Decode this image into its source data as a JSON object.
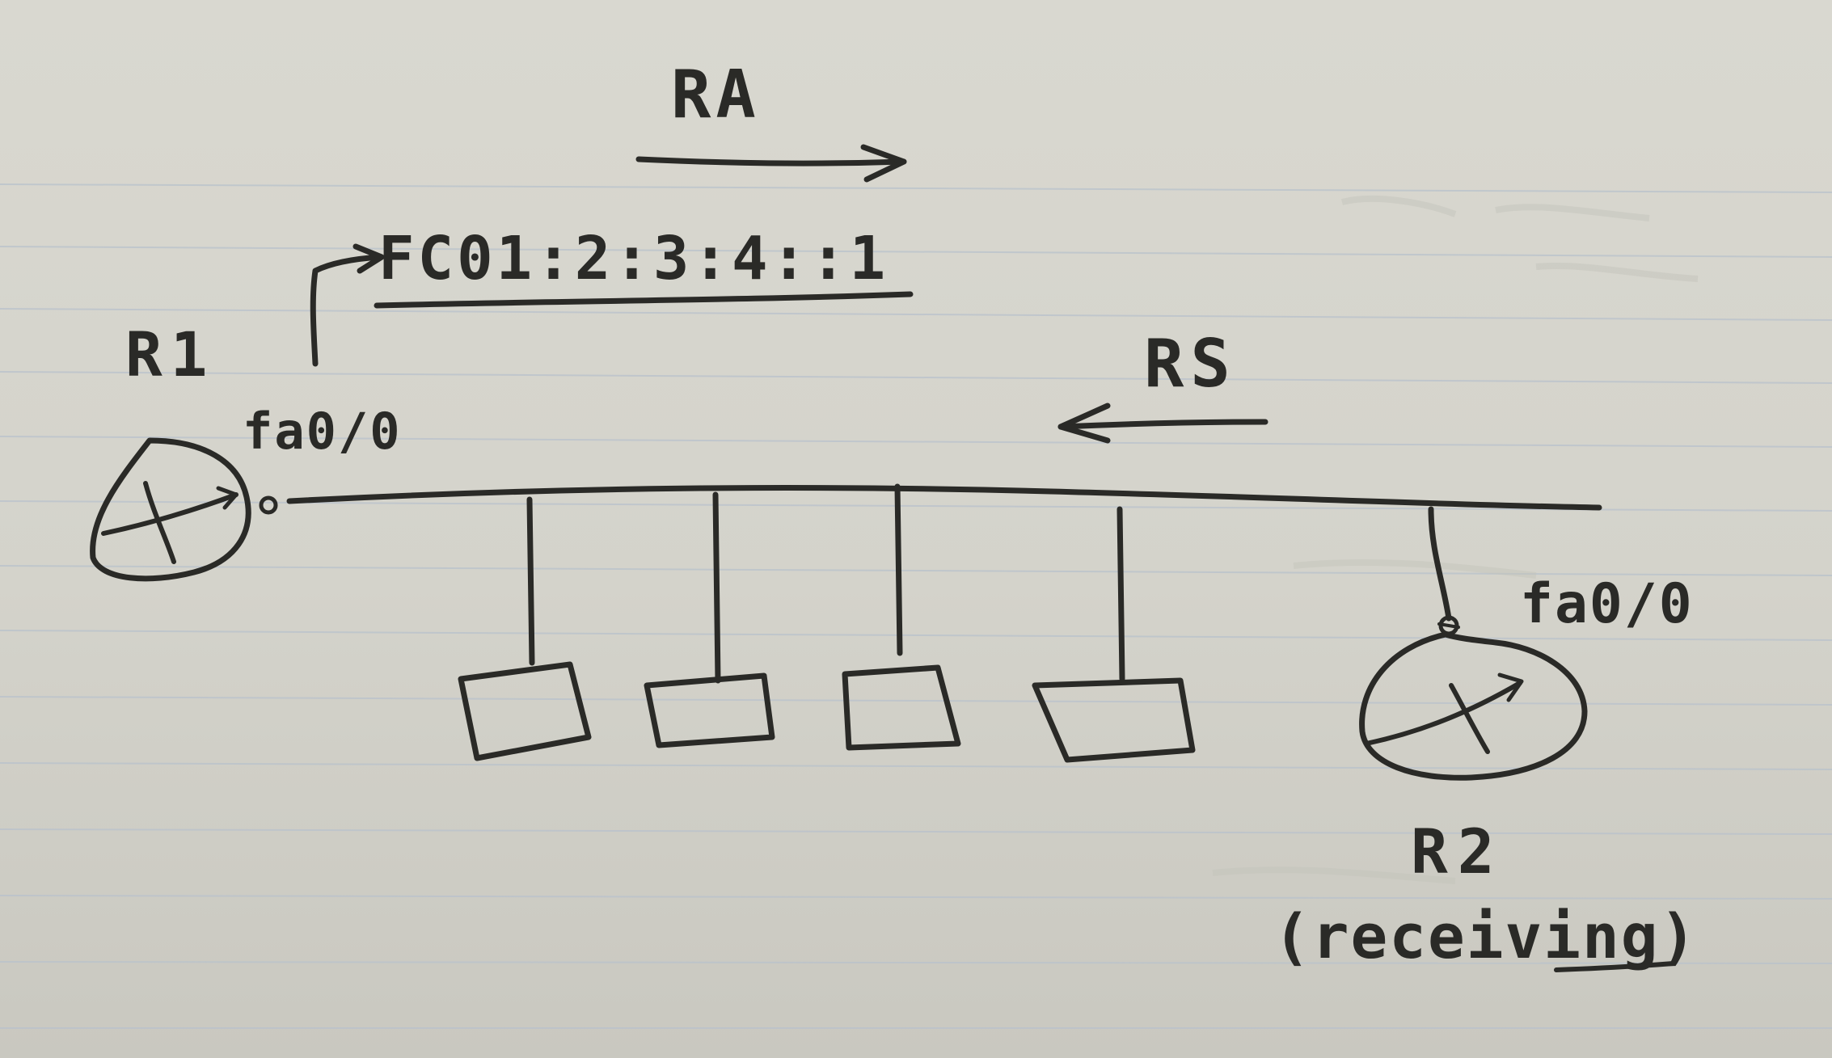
{
  "diagram": {
    "router_left": {
      "name": "R1",
      "interface": "fa0/0"
    },
    "router_right": {
      "name": "R2",
      "interface": "fa0/0",
      "note": "(receiving)"
    },
    "address": "FC01:2:3:4::1",
    "message_right": "RA",
    "message_left": "RS",
    "hosts": [
      {},
      {},
      {},
      {}
    ]
  },
  "ink_color": "#2a2a27",
  "paper_color": "#d6d5cd",
  "rule_color": "#b9c2cc"
}
